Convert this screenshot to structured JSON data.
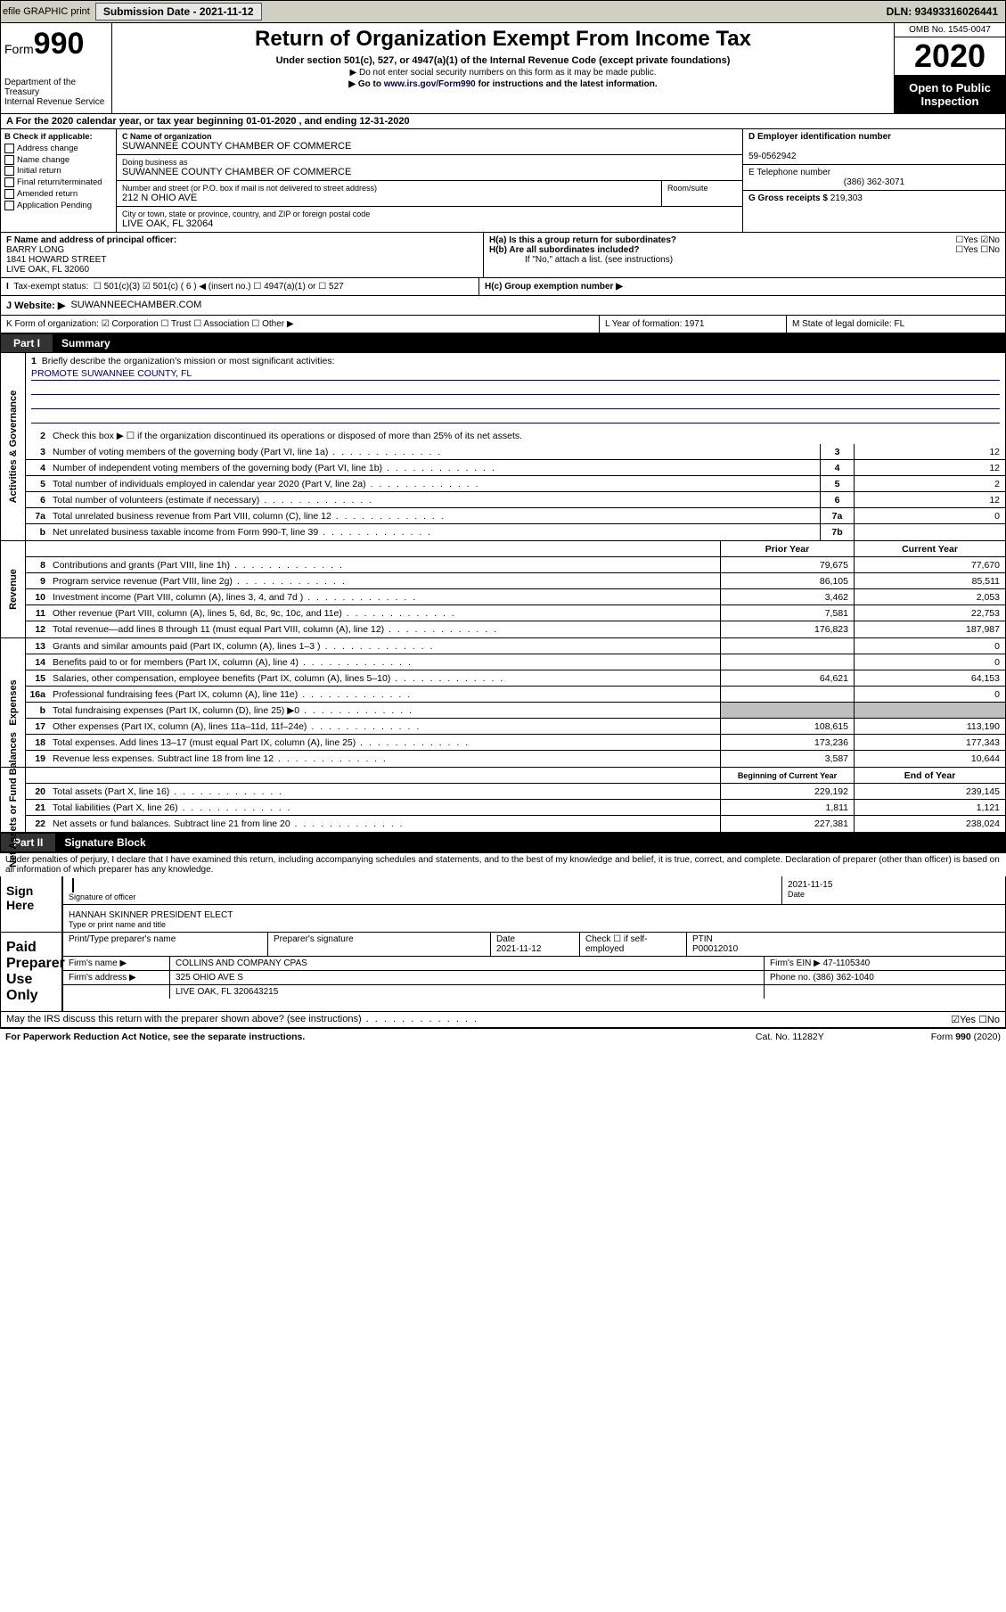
{
  "topbar": {
    "efile": "efile GRAPHIC print",
    "submission_label": "Submission Date - 2021-11-12",
    "dln": "DLN: 93493316026441"
  },
  "header": {
    "form_label": "Form",
    "form_num": "990",
    "dept": "Department of the Treasury\nInternal Revenue Service",
    "title": "Return of Organization Exempt From Income Tax",
    "sub": "Under section 501(c), 527, or 4947(a)(1) of the Internal Revenue Code (except private foundations)",
    "note1": "▶ Do not enter social security numbers on this form as it may be made public.",
    "note2_pre": "▶ Go to ",
    "note2_link": "www.irs.gov/Form990",
    "note2_post": " for instructions and the latest information.",
    "omb": "OMB No. 1545-0047",
    "year": "2020",
    "openpub": "Open to Public Inspection"
  },
  "row_a": "A For the 2020 calendar year, or tax year beginning 01-01-2020   , and ending 12-31-2020",
  "col_b": {
    "title": "B Check if applicable:",
    "opts": [
      "Address change",
      "Name change",
      "Initial return",
      "Final return/terminated",
      "Amended return",
      "Application Pending"
    ]
  },
  "c": {
    "name_lbl": "C Name of organization",
    "name": "SUWANNEE COUNTY CHAMBER OF COMMERCE",
    "dba_lbl": "Doing business as",
    "dba": "SUWANNEE COUNTY CHAMBER OF COMMERCE",
    "street_lbl": "Number and street (or P.O. box if mail is not delivered to street address)",
    "room_lbl": "Room/suite",
    "street": "212 N OHIO AVE",
    "city_lbl": "City or town, state or province, country, and ZIP or foreign postal code",
    "city": "LIVE OAK, FL  32064"
  },
  "d": {
    "lbl": "D Employer identification number",
    "val": "59-0562942"
  },
  "e": {
    "lbl": "E Telephone number",
    "val": "(386) 362-3071"
  },
  "g": {
    "lbl": "G Gross receipts $",
    "val": "219,303"
  },
  "f": {
    "lbl": "F Name and address of principal officer:",
    "name": "BARRY LONG",
    "addr1": "1841 HOWARD STREET",
    "addr2": "LIVE OAK, FL  32060"
  },
  "h": {
    "a": "H(a)  Is this a group return for subordinates?",
    "a_ans": "☐Yes  ☑No",
    "b": "H(b)  Are all subordinates included?",
    "b_ans": "☐Yes  ☐No",
    "b_note": "If \"No,\" attach a list. (see instructions)",
    "c": "H(c)  Group exemption number ▶"
  },
  "i": {
    "lbl": "Tax-exempt status:",
    "opts": "☐ 501(c)(3)   ☑ 501(c) ( 6 ) ◀ (insert no.)   ☐ 4947(a)(1) or   ☐ 527"
  },
  "j": {
    "lbl": "J  Website: ▶",
    "val": "SUWANNEECHAMBER.COM"
  },
  "k": "K Form of organization:  ☑ Corporation  ☐ Trust  ☐ Association  ☐ Other ▶",
  "l": "L Year of formation: 1971",
  "m": "M State of legal domicile: FL",
  "part1": {
    "label": "Part I",
    "title": "Summary"
  },
  "mission": {
    "num": "1",
    "txt": "Briefly describe the organization's mission or most significant activities:",
    "val": "PROMOTE SUWANNEE COUNTY, FL"
  },
  "gov": {
    "side": "Activities & Governance",
    "l2": "Check this box ▶ ☐  if the organization discontinued its operations or disposed of more than 25% of its net assets.",
    "rows": [
      {
        "n": "3",
        "t": "Number of voting members of the governing body (Part VI, line 1a)",
        "b": "3",
        "v": "12"
      },
      {
        "n": "4",
        "t": "Number of independent voting members of the governing body (Part VI, line 1b)",
        "b": "4",
        "v": "12"
      },
      {
        "n": "5",
        "t": "Total number of individuals employed in calendar year 2020 (Part V, line 2a)",
        "b": "5",
        "v": "2"
      },
      {
        "n": "6",
        "t": "Total number of volunteers (estimate if necessary)",
        "b": "6",
        "v": "12"
      },
      {
        "n": "7a",
        "t": "Total unrelated business revenue from Part VIII, column (C), line 12",
        "b": "7a",
        "v": "0"
      },
      {
        "n": "b",
        "t": "Net unrelated business taxable income from Form 990-T, line 39",
        "b": "7b",
        "v": ""
      }
    ]
  },
  "rev": {
    "side": "Revenue",
    "hdr1": "Prior Year",
    "hdr2": "Current Year",
    "rows": [
      {
        "n": "8",
        "t": "Contributions and grants (Part VIII, line 1h)",
        "p": "79,675",
        "c": "77,670"
      },
      {
        "n": "9",
        "t": "Program service revenue (Part VIII, line 2g)",
        "p": "86,105",
        "c": "85,511"
      },
      {
        "n": "10",
        "t": "Investment income (Part VIII, column (A), lines 3, 4, and 7d )",
        "p": "3,462",
        "c": "2,053"
      },
      {
        "n": "11",
        "t": "Other revenue (Part VIII, column (A), lines 5, 6d, 8c, 9c, 10c, and 11e)",
        "p": "7,581",
        "c": "22,753"
      },
      {
        "n": "12",
        "t": "Total revenue—add lines 8 through 11 (must equal Part VIII, column (A), line 12)",
        "p": "176,823",
        "c": "187,987"
      }
    ]
  },
  "exp": {
    "side": "Expenses",
    "rows": [
      {
        "n": "13",
        "t": "Grants and similar amounts paid (Part IX, column (A), lines 1–3 )",
        "p": "",
        "c": "0"
      },
      {
        "n": "14",
        "t": "Benefits paid to or for members (Part IX, column (A), line 4)",
        "p": "",
        "c": "0"
      },
      {
        "n": "15",
        "t": "Salaries, other compensation, employee benefits (Part IX, column (A), lines 5–10)",
        "p": "64,621",
        "c": "64,153"
      },
      {
        "n": "16a",
        "t": "Professional fundraising fees (Part IX, column (A), line 11e)",
        "p": "",
        "c": "0"
      },
      {
        "n": "b",
        "t": "Total fundraising expenses (Part IX, column (D), line 25) ▶0",
        "p": "shade",
        "c": "shade"
      },
      {
        "n": "17",
        "t": "Other expenses (Part IX, column (A), lines 11a–11d, 11f–24e)",
        "p": "108,615",
        "c": "113,190"
      },
      {
        "n": "18",
        "t": "Total expenses. Add lines 13–17 (must equal Part IX, column (A), line 25)",
        "p": "173,236",
        "c": "177,343"
      },
      {
        "n": "19",
        "t": "Revenue less expenses. Subtract line 18 from line 12",
        "p": "3,587",
        "c": "10,644"
      }
    ]
  },
  "net": {
    "side": "Net Assets or Fund Balances",
    "hdr1": "Beginning of Current Year",
    "hdr2": "End of Year",
    "rows": [
      {
        "n": "20",
        "t": "Total assets (Part X, line 16)",
        "p": "229,192",
        "c": "239,145"
      },
      {
        "n": "21",
        "t": "Total liabilities (Part X, line 26)",
        "p": "1,811",
        "c": "1,121"
      },
      {
        "n": "22",
        "t": "Net assets or fund balances. Subtract line 21 from line 20",
        "p": "227,381",
        "c": "238,024"
      }
    ]
  },
  "part2": {
    "label": "Part II",
    "title": "Signature Block"
  },
  "penalty": "Under penalties of perjury, I declare that I have examined this return, including accompanying schedules and statements, and to the best of my knowledge and belief, it is true, correct, and complete. Declaration of preparer (other than officer) is based on all information of which preparer has any knowledge.",
  "sign": {
    "lbl": "Sign Here",
    "sig_lbl": "Signature of officer",
    "date_lbl": "Date",
    "date": "2021-11-15",
    "name": "HANNAH SKINNER  PRESIDENT ELECT",
    "name_lbl": "Type or print name and title"
  },
  "paid": {
    "lbl": "Paid Preparer Use Only",
    "r1": [
      "Print/Type preparer's name",
      "Preparer's signature",
      "Date\n2021-11-12",
      "Check ☐ if self-employed",
      "PTIN\nP00012010"
    ],
    "r2_l": "Firm's name    ▶",
    "r2_v": "COLLINS AND COMPANY CPAS",
    "r2_r": "Firm's EIN ▶ 47-1105340",
    "r3_l": "Firm's address ▶",
    "r3_v": "325 OHIO AVE S",
    "r3_r": "Phone no. (386) 362-1040",
    "r3_v2": "LIVE OAK, FL  320643215"
  },
  "discuss": "May the IRS discuss this return with the preparer shown above? (see instructions)",
  "discuss_ans": "☑Yes  ☐No",
  "footer": {
    "l": "For Paperwork Reduction Act Notice, see the separate instructions.",
    "m": "Cat. No. 11282Y",
    "r": "Form 990 (2020)"
  }
}
